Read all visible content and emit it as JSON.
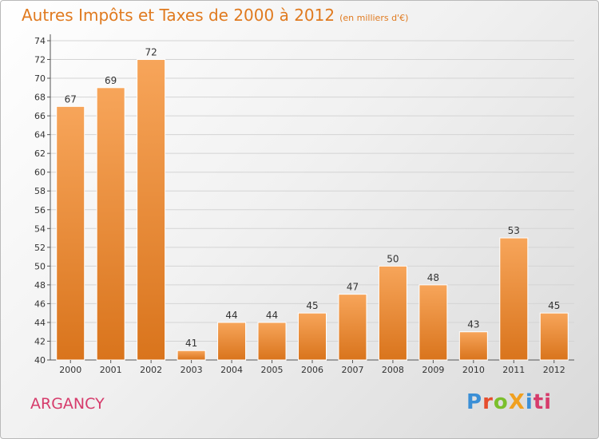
{
  "chart_data": {
    "type": "bar",
    "title": "Autres Impôts et Taxes de 2000 à 2012",
    "subtitle": "(en milliers d'€)",
    "categories": [
      "2000",
      "2001",
      "2002",
      "2003",
      "2004",
      "2005",
      "2006",
      "2007",
      "2008",
      "2009",
      "2010",
      "2011",
      "2012"
    ],
    "values": [
      67,
      69,
      72,
      41,
      44,
      44,
      45,
      47,
      50,
      48,
      43,
      53,
      45
    ],
    "ylim": [
      40,
      74
    ],
    "yticks": [
      40,
      42,
      44,
      46,
      48,
      50,
      52,
      54,
      56,
      58,
      60,
      62,
      64,
      66,
      68,
      70,
      72,
      74
    ],
    "grid": true,
    "bar_color": "#f0a050"
  },
  "commune": "ARGANCY",
  "logo": "ProXiti"
}
